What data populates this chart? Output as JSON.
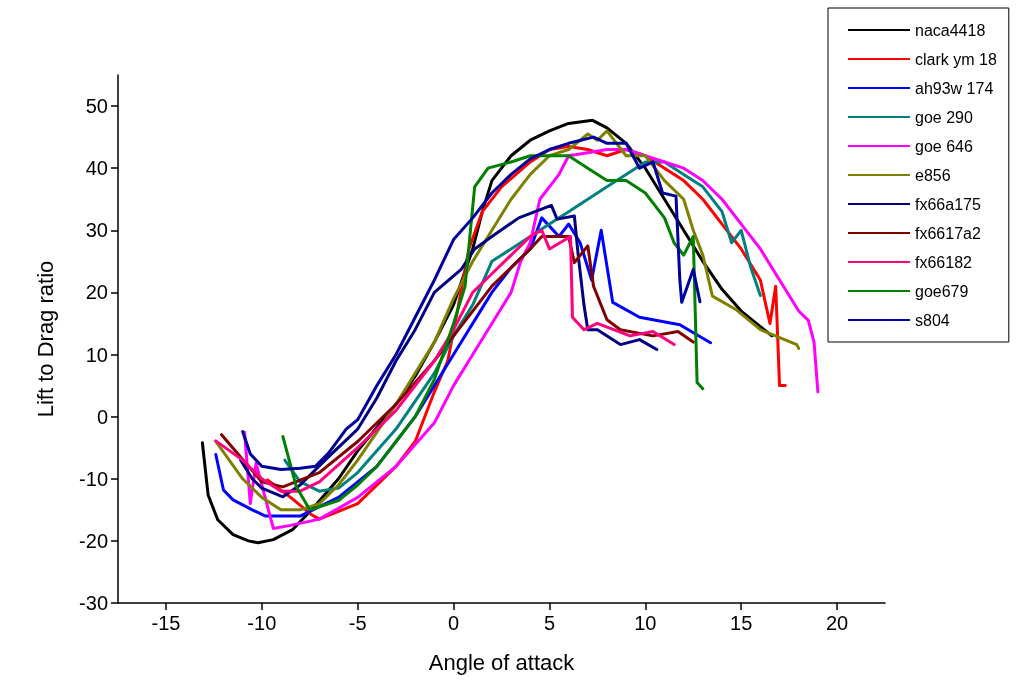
{
  "chart_data": {
    "type": "line",
    "xlabel": "Angle of attack",
    "ylabel": "Lift to Drag ratio",
    "xlim": [
      -17.5,
      22.5
    ],
    "xticks": [
      -15,
      -10,
      -5,
      0,
      5,
      10,
      15,
      20
    ],
    "ylim": [
      -30,
      55
    ],
    "yticks": [
      -30,
      -20,
      -10,
      0,
      10,
      20,
      30,
      40,
      50
    ],
    "grid": false,
    "legend": "top right",
    "marker": "none",
    "line_style": "solid",
    "series": [
      {
        "name": "naca4418",
        "color": "#000000",
        "x": [
          -13.1,
          -12.8,
          -12.3,
          -11.5,
          -10.7,
          -10.2,
          -9.4,
          -8.4,
          -7.4,
          -6,
          -5,
          -3,
          -2,
          -1,
          0,
          1,
          1.5,
          2,
          3,
          4,
          5,
          6,
          7.25,
          8,
          9,
          10,
          11,
          12,
          13,
          14,
          15,
          16,
          16.6
        ],
        "values": [
          -4.2,
          -12.6,
          -16.6,
          -19,
          -20,
          -20.3,
          -19.8,
          -18.2,
          -15,
          -10,
          -5.5,
          2,
          6.5,
          12,
          18,
          27,
          33,
          38,
          42,
          44.5,
          46,
          47.2,
          47.7,
          46.5,
          44,
          40,
          35,
          30,
          25,
          20.5,
          17,
          14.5,
          13
        ]
      },
      {
        "name": "clark ym 18",
        "color": "#ff0000",
        "x": [
          -9.7,
          -8.5,
          -7.4,
          -7,
          -5,
          -3,
          -2,
          -1,
          -0.3,
          0.2,
          0.8,
          1.5,
          2.5,
          4,
          5,
          6,
          7,
          8,
          9,
          10,
          11,
          12,
          13,
          14,
          15,
          16,
          16.5,
          16.8,
          17,
          17.3
        ],
        "values": [
          -10.2,
          -13,
          -15.8,
          -16.5,
          -14,
          -8,
          -4,
          4,
          9,
          17,
          27,
          33,
          37,
          41,
          43,
          43.5,
          43,
          42,
          43,
          42,
          40,
          38,
          35,
          31,
          27,
          22,
          15,
          21,
          5,
          5
        ]
      },
      {
        "name": "ah93w 174",
        "color": "#0000ff",
        "x": [
          -12.4,
          -12,
          -11.5,
          -10.5,
          -9.8,
          -8,
          -6,
          -4,
          -2,
          0,
          2,
          3,
          4,
          4.6,
          5.5,
          6,
          6.6,
          7.2,
          7.7,
          8.3,
          9.7,
          11.8,
          13.4
        ],
        "values": [
          -6.1,
          -11.8,
          -13.4,
          -15,
          -16,
          -16,
          -13,
          -8,
          0,
          10,
          20,
          24,
          27,
          32,
          29,
          31,
          28,
          22,
          30,
          18.4,
          16,
          14.8,
          11.9
        ]
      },
      {
        "name": "goe 290",
        "color": "#008080",
        "x": [
          -8.8,
          -8,
          -7,
          -6,
          -5,
          -3,
          -1,
          0,
          1,
          2,
          3,
          4,
          5,
          6,
          7,
          8,
          9,
          10,
          11,
          12,
          13,
          14,
          14.5,
          15,
          15.5,
          16
        ],
        "values": [
          -7,
          -10.5,
          -12,
          -11.5,
          -9,
          -2,
          7,
          13,
          18,
          25,
          27,
          29,
          31,
          33,
          35,
          37,
          39,
          41,
          41,
          39,
          37,
          33,
          28,
          30,
          24,
          19.5
        ]
      },
      {
        "name": "goe 646",
        "color": "#ff00ff",
        "x": [
          -10.9,
          -10.6,
          -10.3,
          -9.4,
          -8.5,
          -7,
          -5,
          -3,
          -1,
          0,
          1,
          2,
          3,
          3.5,
          4,
          4.5,
          5.5,
          6,
          7,
          8,
          9,
          10,
          11,
          12,
          13,
          14,
          15,
          16,
          17,
          18,
          18.5,
          18.8,
          19
        ],
        "values": [
          -2.5,
          -14,
          -7.5,
          -18,
          -17.5,
          -16.5,
          -13,
          -8,
          -1,
          5,
          10,
          15,
          20,
          25,
          28,
          35,
          39,
          42,
          42.5,
          43,
          43,
          42,
          41,
          40,
          38,
          35,
          31,
          27,
          22,
          17,
          15.5,
          12,
          4
        ]
      },
      {
        "name": "e856",
        "color": "#808000",
        "x": [
          -12.4,
          -11,
          -10,
          -9,
          -8,
          -7,
          -6,
          -5,
          -3,
          -1,
          0,
          1,
          2,
          3,
          4,
          5,
          6,
          7,
          7.5,
          8,
          8.5,
          9,
          10,
          11,
          12,
          12.5,
          13,
          13.5,
          14.7,
          16,
          17.9,
          18
        ],
        "values": [
          -4,
          -10,
          -13,
          -15,
          -15,
          -14,
          -11,
          -7,
          2,
          12,
          19,
          25,
          30,
          35,
          39,
          42,
          43,
          45.5,
          44.5,
          46,
          44,
          42,
          42,
          38,
          35,
          30,
          26,
          19.4,
          17.3,
          14,
          11.6,
          11
        ]
      },
      {
        "name": "fx66a175",
        "color": "#000080",
        "x": [
          -11.1,
          -10.5,
          -10,
          -8.9,
          -8,
          -6.7,
          -5,
          -4,
          -3,
          -2,
          -1,
          0.4,
          1.1,
          2,
          3.4,
          5.1,
          5.4,
          6.3,
          6.5,
          6.8,
          7,
          7.5,
          8.7,
          9.7,
          10.6
        ],
        "values": [
          -7,
          -10,
          -11.5,
          -12.9,
          -11,
          -7,
          -2,
          3,
          9,
          14,
          20,
          23.7,
          27,
          29,
          32,
          34,
          31.8,
          32.3,
          26,
          18,
          14,
          14,
          11.6,
          12.4,
          10.8
        ]
      },
      {
        "name": "fx6617a2",
        "color": "#800000",
        "x": [
          -12.1,
          -10,
          -8.9,
          -7,
          -5,
          -3,
          -1,
          0,
          1,
          2,
          3,
          4,
          4.6,
          6,
          6.3,
          7,
          7.3,
          8,
          8.7,
          10.4,
          11.7,
          12.5
        ],
        "values": [
          -2.9,
          -10.5,
          -11.3,
          -9,
          -4,
          2,
          9,
          13,
          17,
          21,
          24,
          27,
          29,
          29,
          24.8,
          27.5,
          21,
          15.6,
          14,
          13,
          13.7,
          12
        ]
      },
      {
        "name": "fx66182",
        "color": "#ff0080",
        "x": [
          -12.4,
          -11,
          -10,
          -9,
          -8,
          -7,
          -5,
          -3,
          -1,
          0,
          1,
          2,
          3,
          4,
          4.6,
          5,
          6.1,
          6.2,
          6.8,
          7.5,
          9.2,
          10.4,
          11.5
        ],
        "values": [
          -3.9,
          -7,
          -10,
          -12,
          -12,
          -10.5,
          -5,
          1,
          9,
          14,
          20,
          23,
          26,
          29,
          30,
          27,
          29,
          16,
          14,
          15,
          13,
          13.7,
          11.6
        ]
      },
      {
        "name": "goe679",
        "color": "#008000",
        "x": [
          -8.9,
          -8.2,
          -7.5,
          -7,
          -6,
          -5,
          -4,
          -3,
          -2,
          -1,
          0,
          0.6,
          1.1,
          1.8,
          3,
          4,
          5,
          6,
          7,
          8,
          9,
          10,
          11,
          11.5,
          12,
          12.5,
          12.7,
          13
        ],
        "values": [
          -3.2,
          -11.3,
          -15,
          -14.5,
          -13.5,
          -11,
          -8,
          -4,
          0,
          6,
          15,
          21,
          37,
          40,
          41,
          42,
          42,
          42,
          40,
          38,
          38,
          36,
          32,
          28,
          26,
          29,
          5.5,
          4.5
        ]
      },
      {
        "name": "s804",
        "color": "#00009f",
        "x": [
          -11,
          -10.6,
          -10,
          -9,
          -8,
          -7.2,
          -6.5,
          -5.6,
          -5,
          -4,
          -3,
          -2,
          -1,
          0,
          1,
          2,
          3,
          4,
          5,
          6,
          7.3,
          8,
          9,
          9.7,
          10.4,
          10.9,
          11.6,
          11.8,
          11.9,
          12.5,
          12.85
        ],
        "values": [
          -2.4,
          -6,
          -8,
          -8.5,
          -8.3,
          -8,
          -5.8,
          -2,
          -0.5,
          5,
          10,
          16,
          22,
          28.5,
          32,
          36,
          39,
          41.5,
          43,
          44,
          45,
          44,
          44,
          40,
          41,
          36,
          35.5,
          22,
          18.4,
          23.7,
          18.5
        ]
      }
    ]
  }
}
